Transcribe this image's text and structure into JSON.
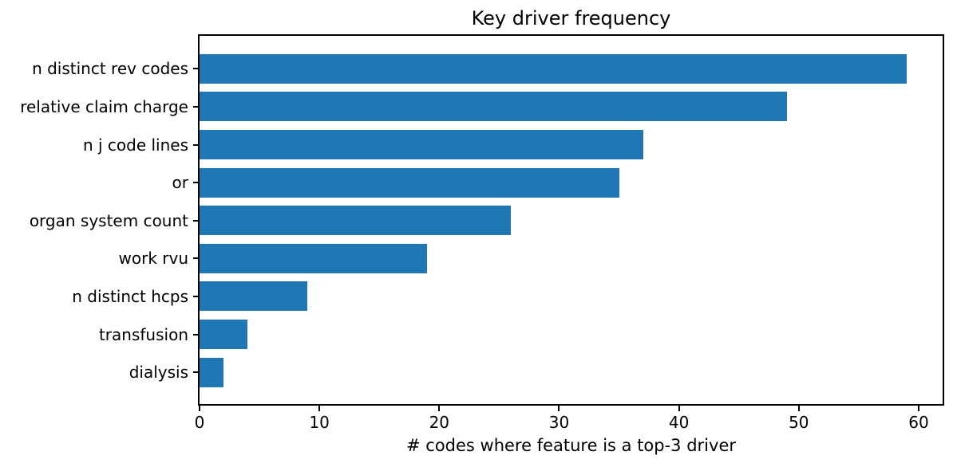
{
  "figure": {
    "background": "#ffffff",
    "text_color": "#000000"
  },
  "chart_data": {
    "type": "bar",
    "orientation": "horizontal",
    "title": "Key driver frequency",
    "xlabel": "# codes where feature is a top-3 driver",
    "ylabel": "",
    "categories": [
      "n distinct rev codes",
      "relative claim charge",
      "n j code lines",
      "or",
      "organ system count",
      "work rvu",
      "n distinct hcps",
      "transfusion",
      "dialysis"
    ],
    "values": [
      59,
      49,
      37,
      35,
      26,
      19,
      9,
      4,
      2
    ],
    "xticks": [
      0,
      10,
      20,
      30,
      40,
      50,
      60
    ],
    "xlim": [
      0,
      62
    ],
    "bar_color": "#1f77b4",
    "grid": false,
    "legend": "none"
  }
}
